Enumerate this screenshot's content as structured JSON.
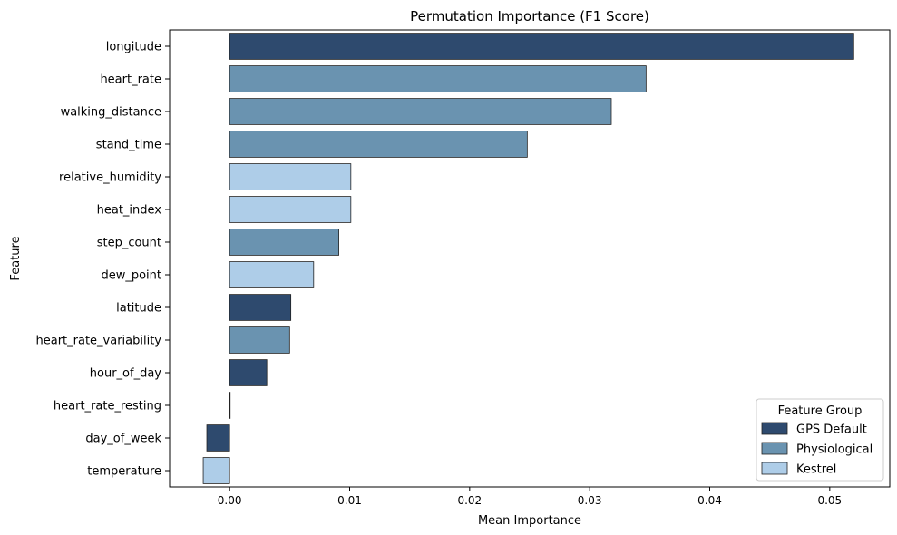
{
  "chart_data": {
    "type": "bar",
    "orientation": "horizontal",
    "title": "Permutation Importance (F1 Score)",
    "xlabel": "Mean Importance",
    "ylabel": "Feature",
    "xlim": [
      -0.005,
      0.055
    ],
    "x_ticks": [
      0.0,
      0.01,
      0.02,
      0.03,
      0.04,
      0.05
    ],
    "x_tick_labels": [
      "0.00",
      "0.01",
      "0.02",
      "0.03",
      "0.04",
      "0.05"
    ],
    "grid": false,
    "legend": {
      "title": "Feature Group",
      "placement": "bottom-right",
      "entries": [
        "GPS Default",
        "Physiological",
        "Kestrel"
      ]
    },
    "colors": {
      "GPS Default": "#2e4a6e",
      "Physiological": "#6a93b0",
      "Kestrel": "#aecde8"
    },
    "categories": [
      "longitude",
      "heart_rate",
      "walking_distance",
      "stand_time",
      "relative_humidity",
      "heat_index",
      "step_count",
      "dew_point",
      "latitude",
      "heart_rate_variability",
      "hour_of_day",
      "heart_rate_resting",
      "day_of_week",
      "temperature"
    ],
    "values": [
      0.052,
      0.0347,
      0.0318,
      0.0248,
      0.0101,
      0.0101,
      0.0091,
      0.007,
      0.0051,
      0.005,
      0.0031,
      0.0,
      -0.0019,
      -0.0022
    ],
    "groups": [
      "GPS Default",
      "Physiological",
      "Physiological",
      "Physiological",
      "Kestrel",
      "Kestrel",
      "Physiological",
      "Kestrel",
      "GPS Default",
      "Physiological",
      "GPS Default",
      "Physiological",
      "GPS Default",
      "Kestrel"
    ]
  }
}
